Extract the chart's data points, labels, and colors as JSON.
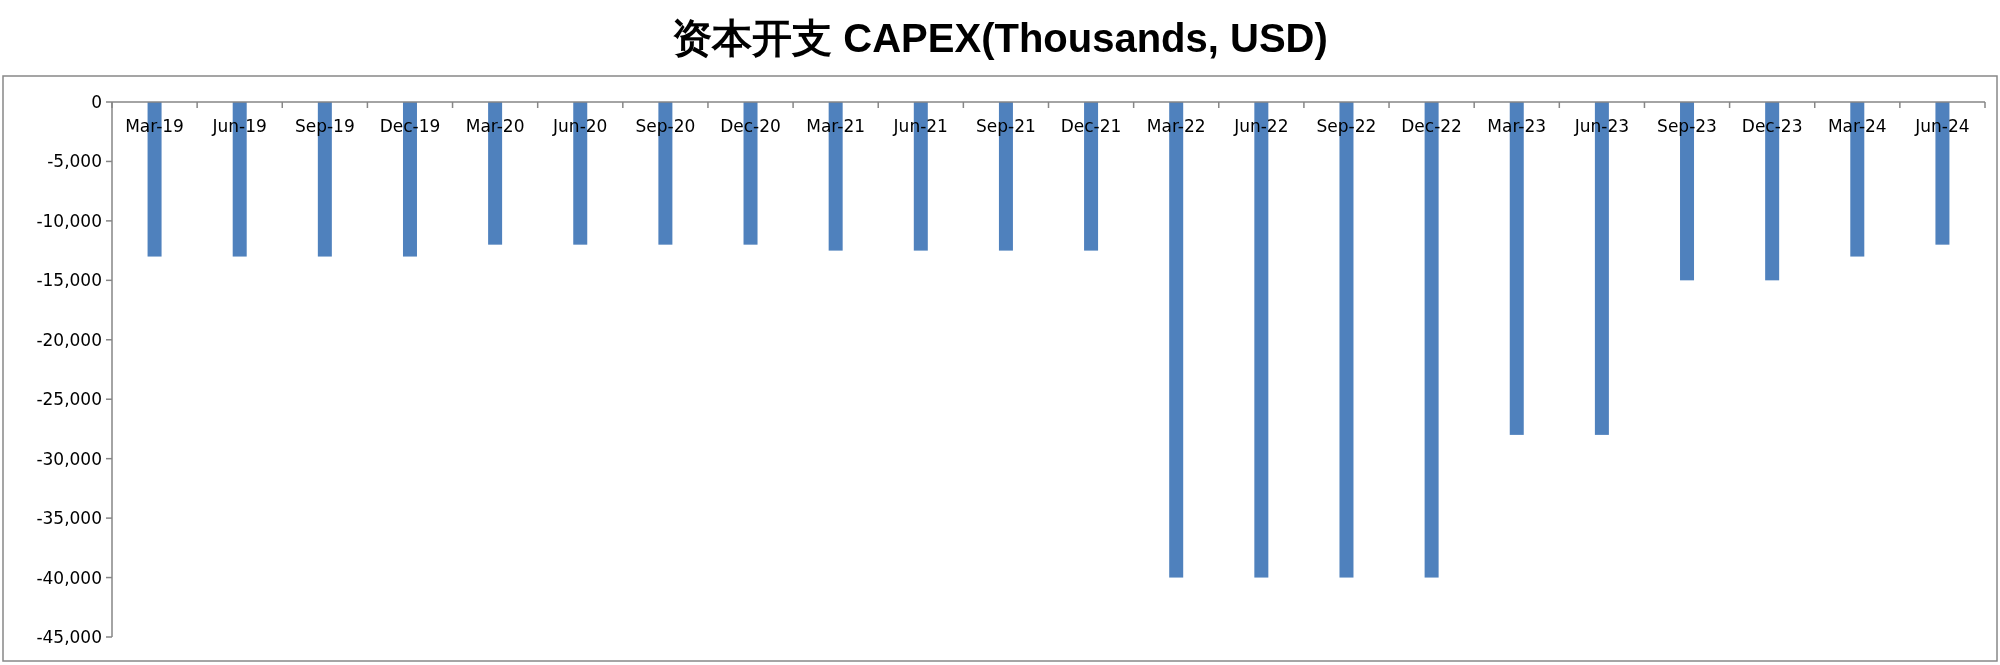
{
  "chart_data": {
    "type": "bar",
    "title": "资本开支 CAPEX(Thousands, USD)",
    "categories": [
      "Mar-19",
      "Jun-19",
      "Sep-19",
      "Dec-19",
      "Mar-20",
      "Jun-20",
      "Sep-20",
      "Dec-20",
      "Mar-21",
      "Jun-21",
      "Sep-21",
      "Dec-21",
      "Mar-22",
      "Jun-22",
      "Sep-22",
      "Dec-22",
      "Mar-23",
      "Jun-23",
      "Sep-23",
      "Dec-23",
      "Mar-24",
      "Jun-24"
    ],
    "values": [
      -13000,
      -13000,
      -13000,
      -13000,
      -12000,
      -12000,
      -12000,
      -12000,
      -12500,
      -12500,
      -12500,
      -12500,
      -40000,
      -40000,
      -40000,
      -40000,
      -28000,
      -28000,
      -15000,
      -15000,
      -13000,
      -12000
    ],
    "color": "#4f81bd",
    "ylim": [
      -45000,
      0
    ],
    "yticks": [
      {
        "value": 0,
        "label": "0"
      },
      {
        "value": -5000,
        "label": "-5,000"
      },
      {
        "value": -10000,
        "label": "-10,000"
      },
      {
        "value": -15000,
        "label": "-15,000"
      },
      {
        "value": -20000,
        "label": "-20,000"
      },
      {
        "value": -25000,
        "label": "-25,000"
      },
      {
        "value": -30000,
        "label": "-30,000"
      },
      {
        "value": -35000,
        "label": "-35,000"
      },
      {
        "value": -40000,
        "label": "-40,000"
      },
      {
        "value": -45000,
        "label": "-45,000"
      }
    ],
    "grid": false
  }
}
